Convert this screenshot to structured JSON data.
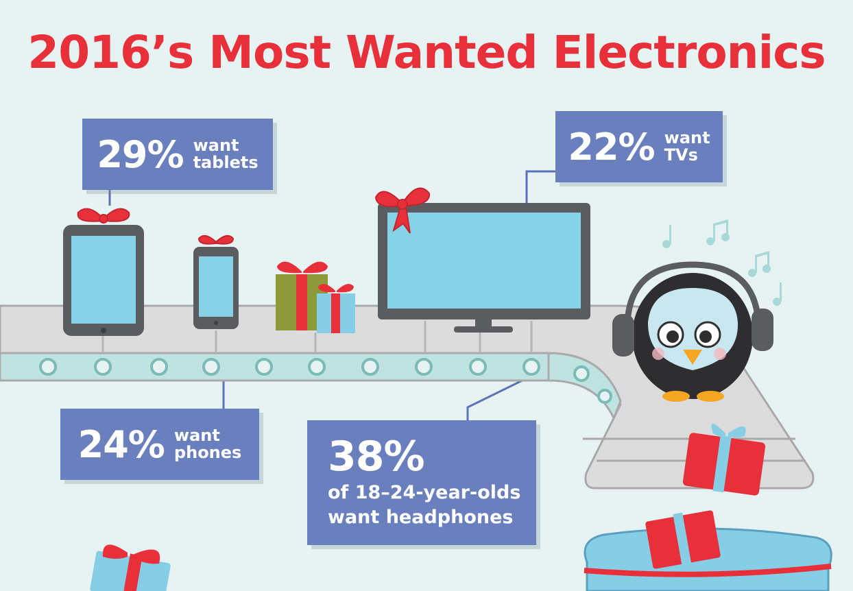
{
  "title": "2016’s Most Wanted Electronics",
  "callouts": {
    "tablets": {
      "pct": "29%",
      "line1": "want",
      "line2": "tablets"
    },
    "tvs": {
      "pct": "22%",
      "line1": "want",
      "line2": "TVs"
    },
    "phones": {
      "pct": "24%",
      "line1": "want",
      "line2": "phones"
    },
    "headphones": {
      "pct": "38%",
      "line1": "of 18–24-year-olds",
      "line2": "want headphones"
    }
  },
  "colors": {
    "background": "#e6f3f2",
    "title_red": "#e8303b",
    "callout_blue": "#6a7fbe",
    "screen_blue": "#86d3e8",
    "device_gray": "#5a5c5f",
    "belt_gray": "#d9d9d9"
  },
  "icons": [
    "tablet-icon",
    "phone-icon",
    "gift-icon",
    "tv-icon",
    "penguin-icon",
    "headphones-icon",
    "music-note-icon",
    "sack-icon",
    "bow-icon"
  ]
}
